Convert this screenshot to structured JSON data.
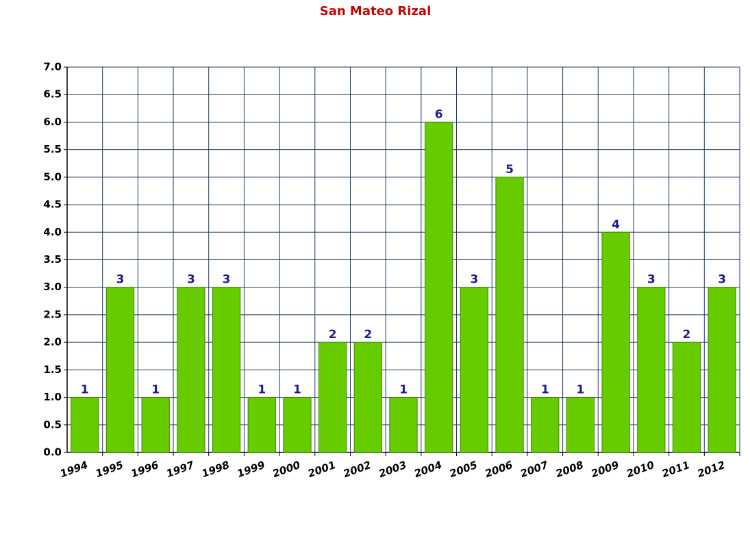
{
  "chart_data": {
    "type": "bar",
    "title": "San Mateo Rizal",
    "categories": [
      "1994",
      "1995",
      "1996",
      "1997",
      "1998",
      "1999",
      "2000",
      "2001",
      "2002",
      "2003",
      "2004",
      "2005",
      "2006",
      "2007",
      "2008",
      "2009",
      "2010",
      "2011",
      "2012"
    ],
    "values": [
      1,
      3,
      1,
      3,
      3,
      1,
      1,
      2,
      2,
      1,
      6,
      3,
      5,
      1,
      1,
      4,
      3,
      2,
      3
    ],
    "color": "#66cc00",
    "ylim": [
      0,
      7
    ],
    "yticks": [
      {
        "value": 0,
        "label": "0.0"
      },
      0.5,
      {
        "value": 1,
        "label": "1.0"
      },
      1.5,
      {
        "value": 2,
        "label": "2.0"
      },
      2.5,
      {
        "value": 3,
        "label": "3.0"
      },
      3.5,
      {
        "value": 4,
        "label": "4.0"
      },
      4.5,
      {
        "value": 5,
        "label": "5.0"
      },
      5.5,
      {
        "value": 6,
        "label": "6.0"
      },
      6.5,
      {
        "value": 7,
        "label": "7.0"
      }
    ],
    "grid": true
  }
}
